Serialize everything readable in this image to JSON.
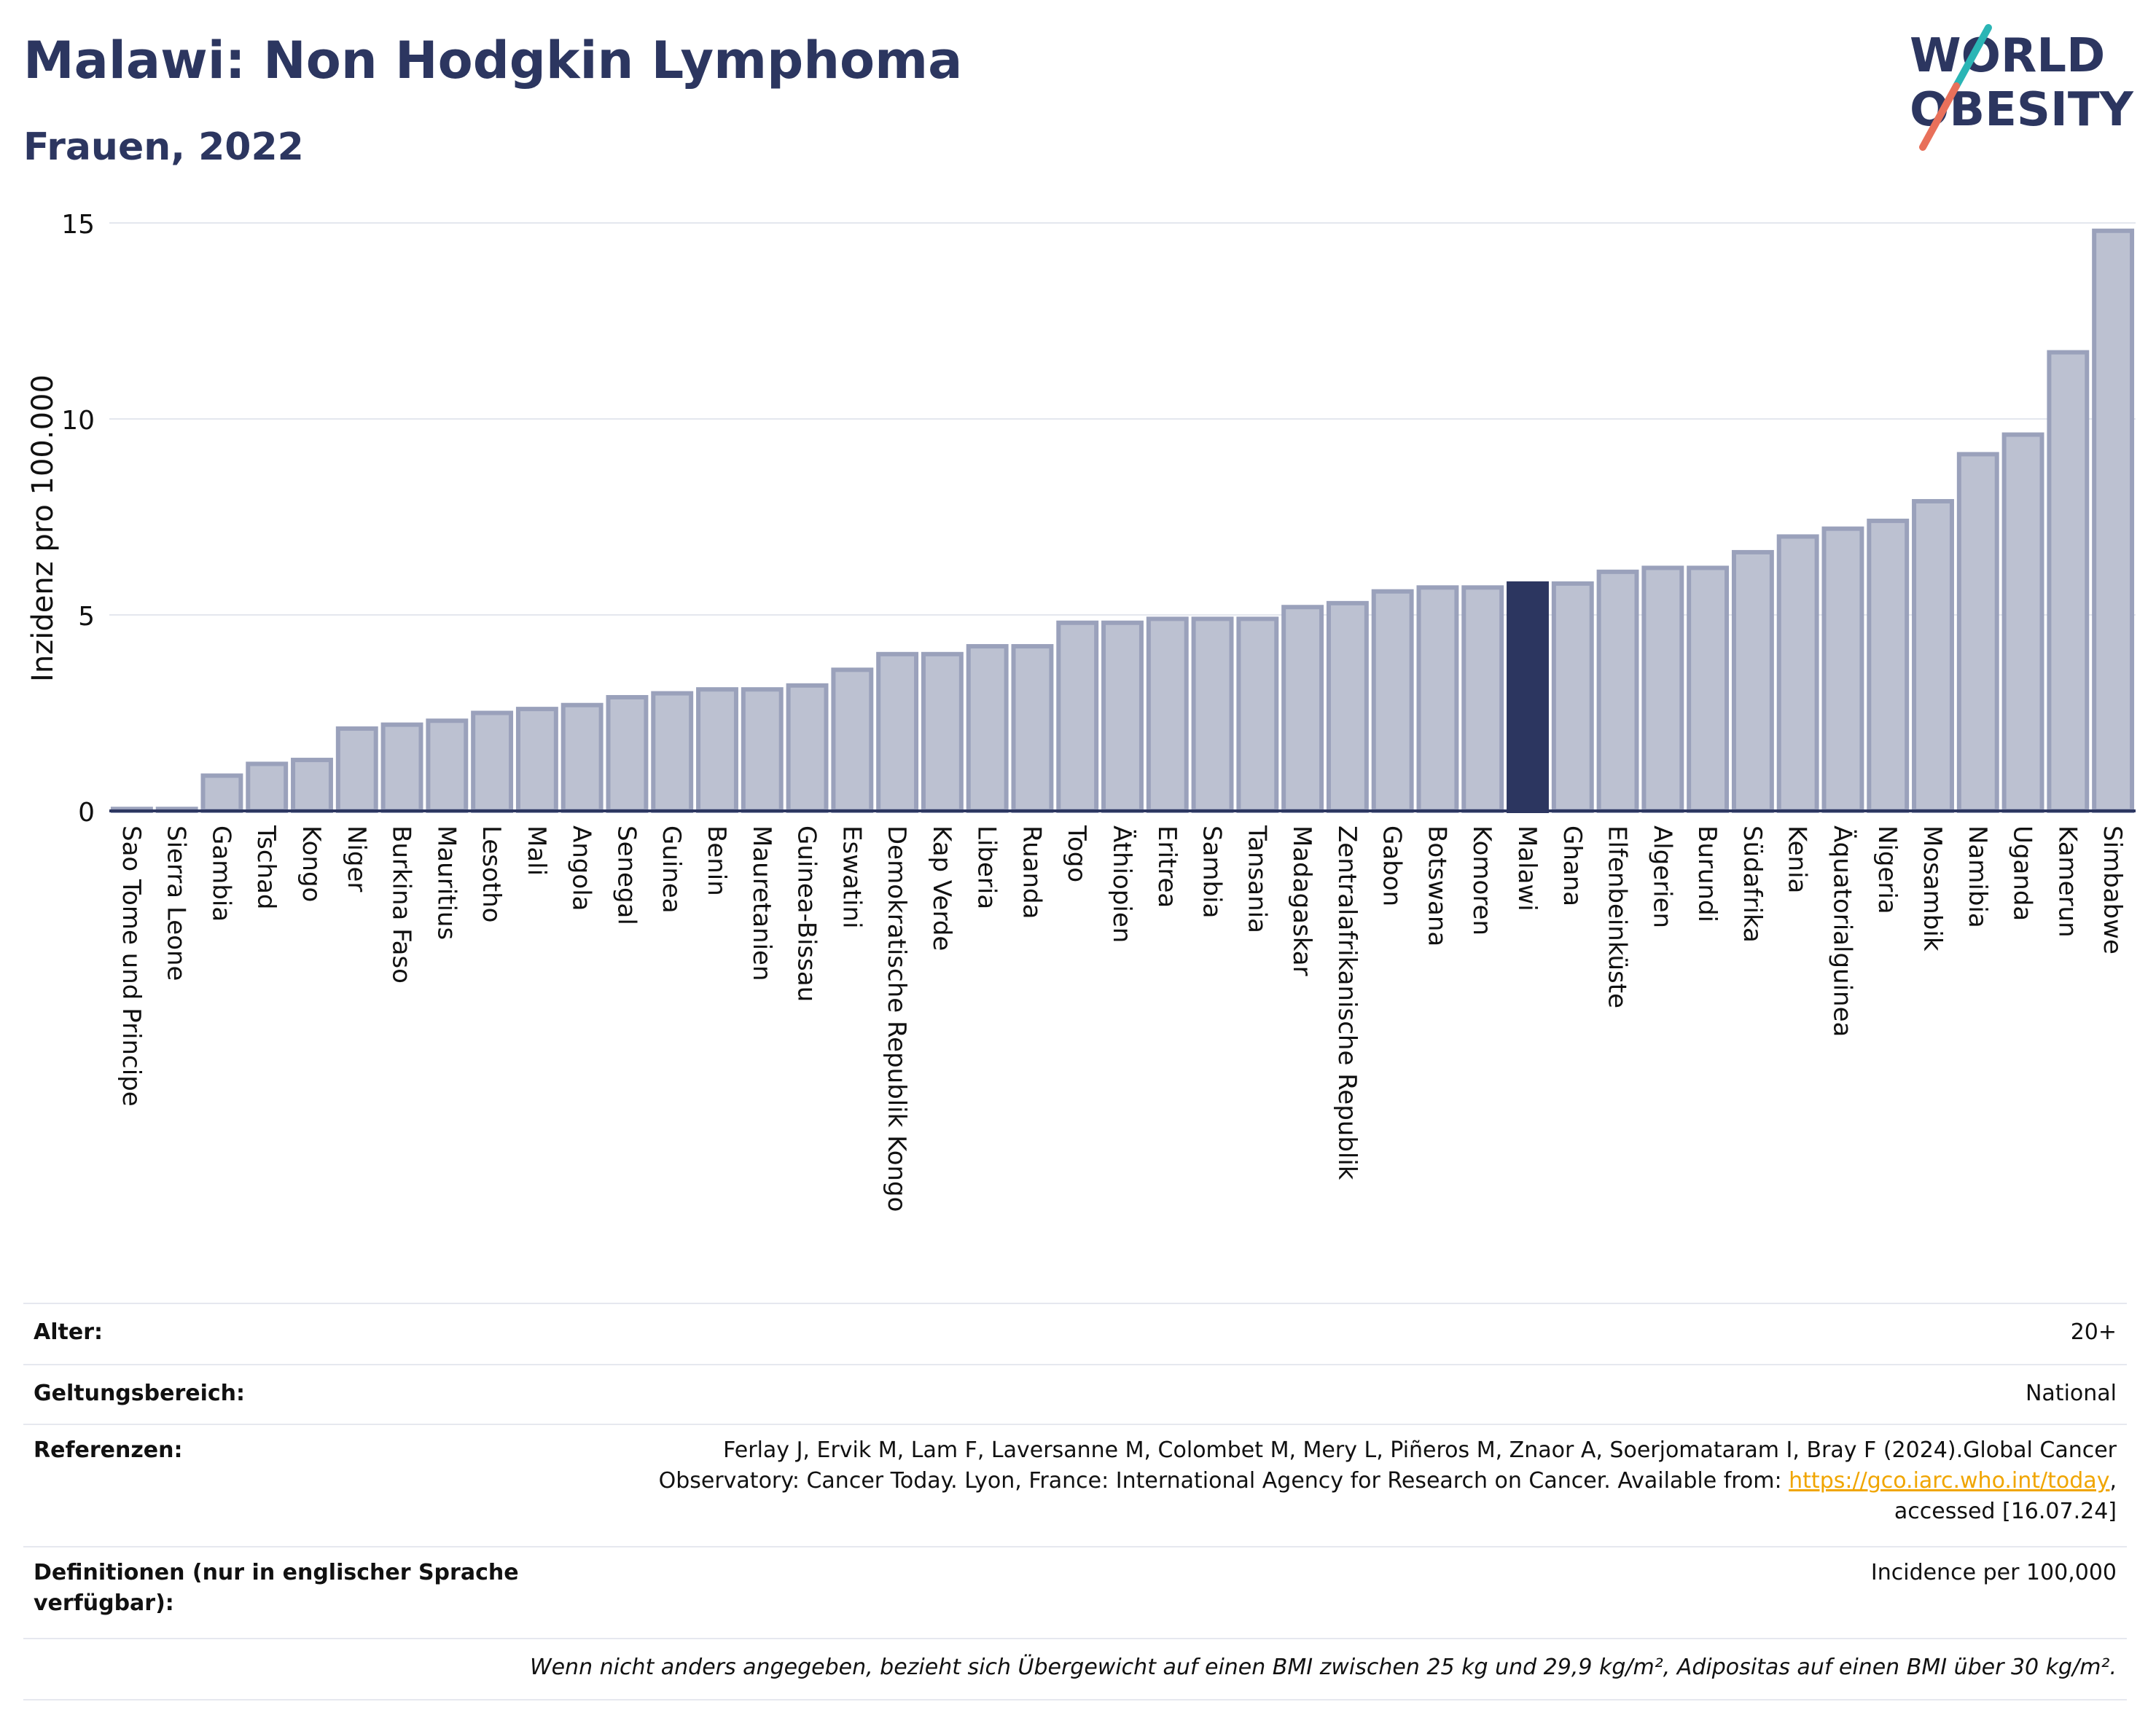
{
  "header": {
    "title": "Malawi: Non Hodgkin Lymphoma",
    "subtitle": "Frauen, 2022",
    "logo_line1": "WORLD",
    "logo_line2": "OBESITY"
  },
  "chart_data": {
    "type": "bar",
    "ylabel": "Inzidenz pro 100.000",
    "ylim": [
      0,
      15
    ],
    "yticks": [
      0,
      5,
      10,
      15
    ],
    "grid": true,
    "highlight": "Malawi",
    "colors": {
      "bar": "#bcc1d1",
      "bar_border": "#9aa1bb",
      "highlight": "#2c3660",
      "axis": "#2c3660",
      "grid": "#e4e7ee"
    },
    "categories": [
      "Sao Tome und Principe",
      "Sierra Leone",
      "Gambia",
      "Tschad",
      "Kongo",
      "Niger",
      "Burkina Faso",
      "Mauritius",
      "Lesotho",
      "Mali",
      "Angola",
      "Senegal",
      "Guinea",
      "Benin",
      "Mauretanien",
      "Guinea-Bissau",
      "Eswatini",
      "Demokratische Republik Kongo",
      "Kap Verde",
      "Liberia",
      "Ruanda",
      "Togo",
      "Äthiopien",
      "Eritrea",
      "Sambia",
      "Tansania",
      "Madagaskar",
      "Zentralafrikanische Republik",
      "Gabon",
      "Botswana",
      "Komoren",
      "Malawi",
      "Ghana",
      "Elfenbeinküste",
      "Algerien",
      "Burundi",
      "Südafrika",
      "Kenia",
      "Äquatorialguinea",
      "Nigeria",
      "Mosambik",
      "Namibia",
      "Uganda",
      "Kamerun",
      "Simbabwe"
    ],
    "values": [
      0.05,
      0.05,
      0.9,
      1.2,
      1.3,
      2.1,
      2.2,
      2.3,
      2.5,
      2.6,
      2.7,
      2.9,
      3.0,
      3.1,
      3.1,
      3.2,
      3.6,
      4.0,
      4.0,
      4.2,
      4.2,
      4.8,
      4.8,
      4.9,
      4.9,
      4.9,
      5.2,
      5.3,
      5.6,
      5.7,
      5.7,
      5.8,
      5.8,
      6.1,
      6.2,
      6.2,
      6.6,
      7.0,
      7.2,
      7.4,
      7.9,
      9.1,
      9.6,
      11.7,
      14.8
    ]
  },
  "meta": {
    "age_label": "Alter:",
    "age_value": "20+",
    "scope_label": "Geltungsbereich:",
    "scope_value": "National",
    "ref_label": "Referenzen:",
    "ref_line1": "Ferlay J, Ervik M, Lam F, Laversanne M, Colombet M, Mery L, Piñeros M, Znaor A, Soerjomataram I, Bray F (2024).Global Cancer",
    "ref_line2_pre": "Observatory: Cancer Today. Lyon, France: International Agency for Research on Cancer. Available from: ",
    "ref_link": "https://gco.iarc.who.int/today",
    "ref_line2_post": ",",
    "ref_line3": "accessed [16.07.24]",
    "def_label_1": "Definitionen (nur in englischer Sprache",
    "def_label_2": "verfügbar):",
    "def_value": "Incidence per 100,000",
    "note": "Wenn nicht anders angegeben, bezieht sich Übergewicht auf einen BMI zwischen 25 kg und 29,9 kg/m², Adipositas auf einen BMI über 30 kg/m²."
  }
}
